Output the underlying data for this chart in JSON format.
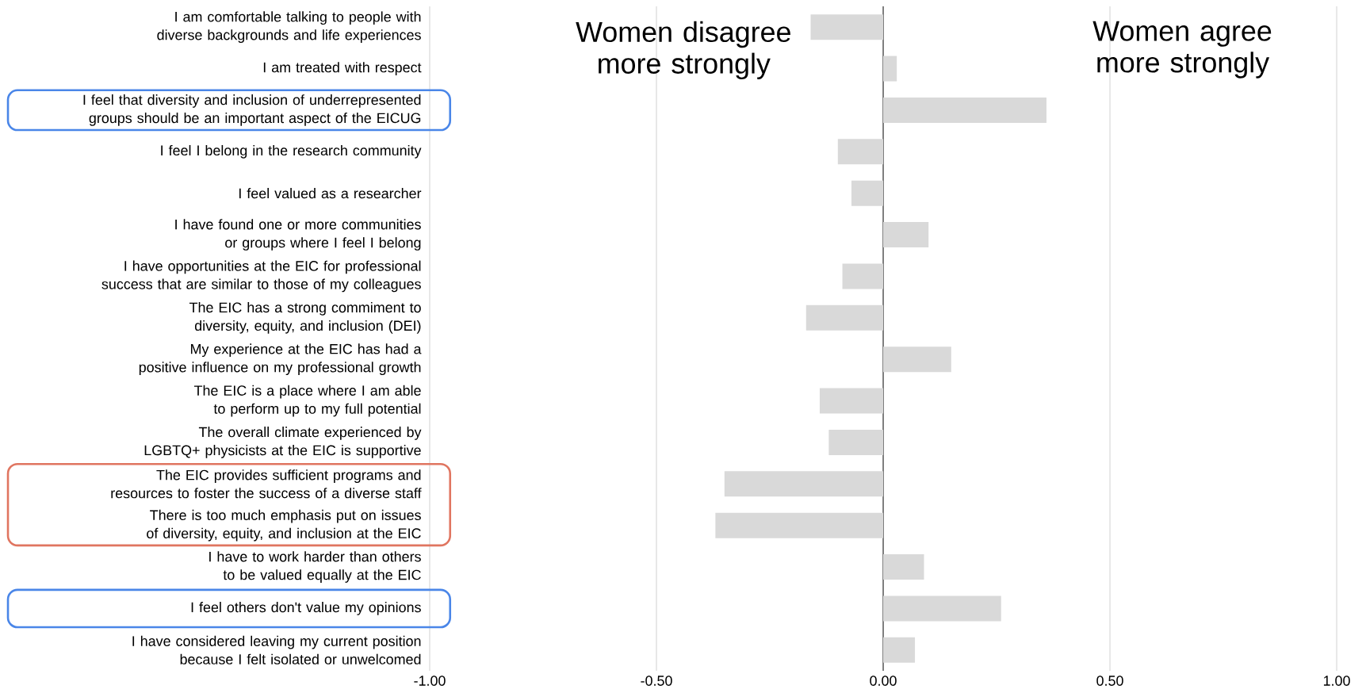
{
  "chart_data": {
    "type": "bar",
    "orientation": "horizontal",
    "categories": [
      "I am comfortable talking to people with diverse backgrounds and life experiences",
      "I am treated with respect",
      "I feel that diversity and inclusion of underrepresented groups should be an important aspect of the EICUG",
      "I feel I belong in the research community",
      "I feel valued as a researcher",
      "I have found one or more communities or  groups where I feel I belong",
      "I have opportunities at the EIC for professional success that are similar to those of my  colleagues",
      "The EIC has a strong commiment to diversity, equity, and inclusion (DEI)",
      "My experience at the EIC has had a positive  influence on my professional growth",
      "The EIC is a place where I am able to perform up  to my full potential",
      "The overall climate experienced by LGBTQ+ physicists at the EIC is  supportive",
      "The EIC provides sufficient programs and  resources to foster the success of a diverse  staff",
      "There is too much emphasis put on issues of diversity, equity, and inclusion at the EIC",
      "I have to work harder than others to be valued  equally at the EIC",
      "I feel others don't value my opinions",
      "I have considered leaving my current position because I felt  isolated or unwelcomed"
    ],
    "values": [
      -0.16,
      0.03,
      0.36,
      -0.1,
      -0.07,
      0.1,
      -0.09,
      -0.17,
      0.15,
      -0.14,
      -0.12,
      -0.35,
      -0.37,
      0.09,
      0.26,
      0.07
    ],
    "color": "#d9d9d9",
    "xlim": [
      -1,
      1
    ],
    "xticks": [
      {
        "value": -1,
        "label": "-1.00"
      },
      {
        "value": -0.5,
        "label": "-0.50"
      },
      {
        "value": 0,
        "label": "0.00"
      },
      {
        "value": 0.5,
        "label": "0.50"
      },
      {
        "value": 1,
        "label": "1.00"
      }
    ],
    "grid": "x",
    "annotations": [
      "Women disagree more strongly",
      "Women agree more strongly"
    ]
  }
}
